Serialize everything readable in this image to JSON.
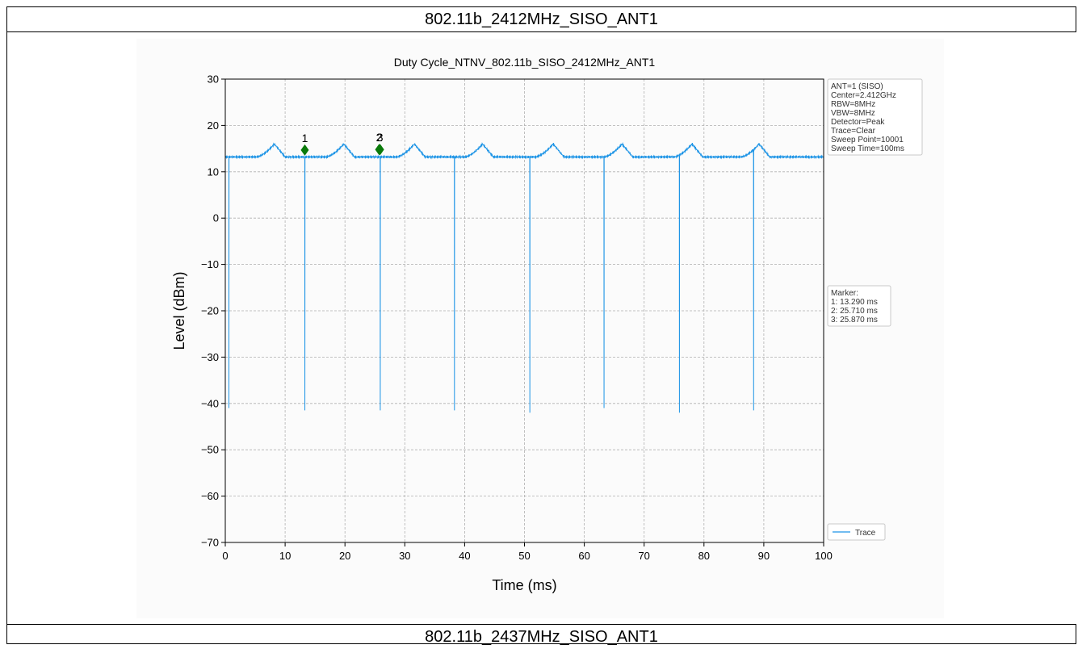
{
  "sections": [
    {
      "title": "802.11b_2412MHz_SISO_ANT1"
    },
    {
      "title": "802.11b_2437MHz_SISO_ANT1"
    }
  ],
  "chart_data": {
    "type": "line",
    "title": "Duty Cycle_NTNV_802.11b_SISO_2412MHz_ANT1",
    "xlabel": "Time (ms)",
    "ylabel": "Level (dBm)",
    "xlim": [
      0,
      100
    ],
    "ylim": [
      -70,
      30
    ],
    "xticks": [
      0,
      10,
      20,
      30,
      40,
      50,
      60,
      70,
      80,
      90,
      100
    ],
    "yticks": [
      30,
      20,
      10,
      0,
      -10,
      -20,
      -30,
      -40,
      -50,
      -60,
      -70
    ],
    "grid": true,
    "series": [
      {
        "name": "Trace",
        "color": "#1f95e6",
        "baseline_dbm": 13.2,
        "hump_peak_dbm": 16.0,
        "hump_positions_ms": [
          8.2,
          19.8,
          31.6,
          43.0,
          54.8,
          66.3,
          78.0,
          89.2
        ],
        "drop_positions_ms": [
          0.6,
          13.3,
          25.9,
          38.3,
          50.9,
          63.3,
          75.9,
          88.3
        ],
        "drop_min_dbm": [
          -41.0,
          -41.5,
          -41.5,
          -41.5,
          -42.0,
          -41.0,
          -42.0,
          -41.5
        ]
      }
    ],
    "markers": [
      {
        "label": "1",
        "x": 13.29,
        "y": 14.7
      },
      {
        "label": "2",
        "x": 25.71,
        "y": 14.8
      },
      {
        "label": "3",
        "x": 25.87,
        "y": 14.8
      }
    ],
    "legend": {
      "position": "bottom-right",
      "entries": [
        "Trace"
      ]
    },
    "settings_box": [
      "ANT=1 (SISO)",
      "Center=2.412GHz",
      "RBW=8MHz",
      "VBW=8MHz",
      "Detector=Peak",
      "Trace=Clear",
      "Sweep Point=10001",
      "Sweep Time=100ms"
    ],
    "marker_box": [
      "Marker:",
      "1: 13.290 ms",
      "2: 25.710 ms",
      "3: 25.870 ms"
    ]
  }
}
